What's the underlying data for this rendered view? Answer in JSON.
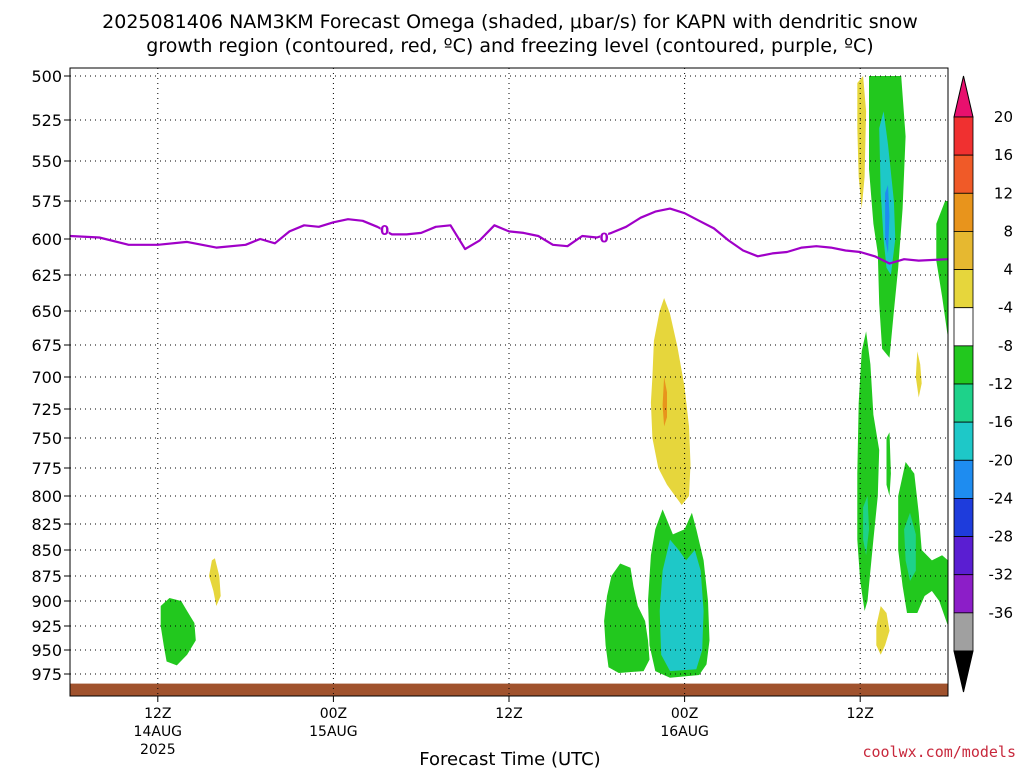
{
  "chart_data": {
    "type": "heatmap",
    "title_line1": "2025081406 NAM3KM Forecast Omega (shaded, μbar/s) for KAPN with dendritic snow",
    "title_line2": "growth region (contoured, red, ºC) and freezing level (contoured, purple, ºC)",
    "xlabel": "Forecast Time (UTC)",
    "credit": "coolwx.com/models",
    "y_axis": {
      "scale": "pressure (hPa), inverted",
      "ylim": [
        500,
        985
      ],
      "ticks": [
        "500",
        "525",
        "550",
        "575",
        "600",
        "625",
        "650",
        "675",
        "700",
        "725",
        "750",
        "775",
        "800",
        "825",
        "850",
        "875",
        "900",
        "925",
        "950",
        "975"
      ]
    },
    "x_axis": {
      "range_hours": [
        0,
        60
      ],
      "ticks": [
        {
          "label": "12Z",
          "sub": "14AUG",
          "sub2": "2025",
          "hour": 6
        },
        {
          "label": "00Z",
          "sub": "15AUG",
          "sub2": "",
          "hour": 18
        },
        {
          "label": "12Z",
          "sub": "",
          "sub2": "",
          "hour": 30
        },
        {
          "label": "00Z",
          "sub": "16AUG",
          "sub2": "",
          "hour": 42
        },
        {
          "label": "12Z",
          "sub": "",
          "sub2": "",
          "hour": 54
        }
      ]
    },
    "colorbar": {
      "labels": [
        "20",
        "16",
        "12",
        "8",
        "4",
        "-4",
        "-8",
        "-12",
        "-16",
        "-20",
        "-24",
        "-28",
        "-32",
        "-36"
      ],
      "colors": [
        "#e8106e",
        "#f03030",
        "#f05a28",
        "#e8941c",
        "#e6b830",
        "#e6d63c",
        "#ffffff",
        "#22c81e",
        "#1ed28a",
        "#1ec8c8",
        "#1e8cf0",
        "#1e3cdc",
        "#5a1ed2",
        "#8c1ec8",
        "#a0a0a0",
        "#000000"
      ],
      "grid": "dotted"
    },
    "freezing_level": {
      "color": "#a000c8",
      "label": "0",
      "points": [
        [
          0,
          598
        ],
        [
          2,
          599
        ],
        [
          4,
          604
        ],
        [
          6,
          604
        ],
        [
          8,
          602
        ],
        [
          10,
          606
        ],
        [
          12,
          604
        ],
        [
          13,
          600
        ],
        [
          14,
          603
        ],
        [
          15,
          595
        ],
        [
          16,
          591
        ],
        [
          17,
          592
        ],
        [
          18,
          589
        ],
        [
          19,
          587
        ],
        [
          20,
          588
        ],
        [
          21,
          592
        ],
        [
          22,
          597
        ],
        [
          23,
          597
        ],
        [
          24,
          596
        ],
        [
          25,
          592
        ],
        [
          26,
          591
        ],
        [
          27,
          607
        ],
        [
          28,
          601
        ],
        [
          29,
          591
        ],
        [
          30,
          595
        ],
        [
          31,
          596
        ],
        [
          32,
          598
        ],
        [
          33,
          604
        ],
        [
          34,
          605
        ],
        [
          35,
          598
        ],
        [
          36,
          599
        ],
        [
          37,
          596
        ],
        [
          38,
          592
        ],
        [
          39,
          586
        ],
        [
          40,
          582
        ],
        [
          41,
          580
        ],
        [
          42,
          583
        ],
        [
          43,
          588
        ],
        [
          44,
          593
        ],
        [
          45,
          601
        ],
        [
          46,
          608
        ],
        [
          47,
          612
        ],
        [
          48,
          610
        ],
        [
          49,
          609
        ],
        [
          50,
          606
        ],
        [
          51,
          605
        ],
        [
          52,
          606
        ],
        [
          53,
          608
        ],
        [
          54,
          609
        ],
        [
          55,
          612
        ],
        [
          56,
          617
        ],
        [
          57,
          614
        ],
        [
          58,
          615
        ],
        [
          60,
          614
        ]
      ],
      "label_points": [
        [
          21.5,
          594
        ],
        [
          36.5,
          599
        ]
      ]
    },
    "omega_regions": [
      {
        "name": "ascent-a-outer",
        "level": "-4",
        "color": "#22c81e",
        "points": [
          [
            6.2,
            905
          ],
          [
            6.8,
            897
          ],
          [
            7.6,
            900
          ],
          [
            8.0,
            910
          ],
          [
            8.5,
            922
          ],
          [
            8.6,
            940
          ],
          [
            8.0,
            955
          ],
          [
            7.3,
            966
          ],
          [
            6.6,
            962
          ],
          [
            6.4,
            945
          ],
          [
            6.2,
            925
          ]
        ]
      },
      {
        "name": "descent-a",
        "level": "4",
        "color": "#e6d63c",
        "points": [
          [
            9.5,
            875
          ],
          [
            9.7,
            860
          ],
          [
            9.9,
            858
          ],
          [
            10.2,
            875
          ],
          [
            10.3,
            895
          ],
          [
            10.0,
            905
          ],
          [
            9.8,
            890
          ]
        ]
      },
      {
        "name": "ascent-b-outer",
        "level": "-4",
        "color": "#22c81e",
        "points": [
          [
            36.7,
            895
          ],
          [
            37.0,
            875
          ],
          [
            37.6,
            863
          ],
          [
            38.3,
            867
          ],
          [
            38.5,
            885
          ],
          [
            38.8,
            905
          ],
          [
            39.3,
            920
          ],
          [
            39.5,
            940
          ],
          [
            39.6,
            960
          ],
          [
            39.2,
            972
          ],
          [
            37.5,
            974
          ],
          [
            36.8,
            968
          ],
          [
            36.6,
            945
          ],
          [
            36.5,
            920
          ]
        ]
      },
      {
        "name": "ascent-c-outer",
        "level": "-4",
        "color": "#22c81e",
        "points": [
          [
            39.7,
            855
          ],
          [
            40.0,
            830
          ],
          [
            40.5,
            812
          ],
          [
            41.2,
            835
          ],
          [
            42.0,
            830
          ],
          [
            42.5,
            815
          ],
          [
            42.8,
            830
          ],
          [
            43.3,
            860
          ],
          [
            43.6,
            900
          ],
          [
            43.7,
            940
          ],
          [
            43.5,
            965
          ],
          [
            43.0,
            976
          ],
          [
            41.0,
            979
          ],
          [
            40.0,
            972
          ],
          [
            39.6,
            945
          ],
          [
            39.5,
            900
          ]
        ]
      },
      {
        "name": "ascent-c-inner",
        "level": "-12",
        "color": "#1ec8c8",
        "points": [
          [
            40.5,
            870
          ],
          [
            41.0,
            840
          ],
          [
            41.6,
            850
          ],
          [
            42.1,
            860
          ],
          [
            42.7,
            850
          ],
          [
            43.1,
            870
          ],
          [
            43.3,
            910
          ],
          [
            43.2,
            950
          ],
          [
            42.8,
            970
          ],
          [
            41.0,
            972
          ],
          [
            40.4,
            955
          ],
          [
            40.3,
            910
          ]
        ]
      },
      {
        "name": "descent-b",
        "level": "4",
        "color": "#e6d63c",
        "points": [
          [
            39.8,
            700
          ],
          [
            39.9,
            672
          ],
          [
            40.3,
            650
          ],
          [
            40.6,
            641
          ],
          [
            41.0,
            652
          ],
          [
            41.5,
            676
          ],
          [
            42.0,
            708
          ],
          [
            42.3,
            740
          ],
          [
            42.4,
            772
          ],
          [
            42.3,
            800
          ],
          [
            41.8,
            808
          ],
          [
            40.8,
            790
          ],
          [
            40.2,
            775
          ],
          [
            39.8,
            750
          ],
          [
            39.7,
            720
          ]
        ]
      },
      {
        "name": "descent-b-core",
        "level": "8",
        "color": "#e8941c",
        "points": [
          [
            40.6,
            700
          ],
          [
            40.8,
            712
          ],
          [
            40.8,
            732
          ],
          [
            40.6,
            740
          ],
          [
            40.5,
            722
          ]
        ]
      },
      {
        "name": "descent-c",
        "level": "4",
        "color": "#e6d63c",
        "points": [
          [
            53.8,
            504
          ],
          [
            54.2,
            500
          ],
          [
            54.4,
            520
          ],
          [
            54.3,
            560
          ],
          [
            54.1,
            580
          ],
          [
            53.9,
            560
          ],
          [
            53.8,
            530
          ]
        ]
      },
      {
        "name": "ascent-d-outer",
        "level": "-4",
        "color": "#22c81e",
        "points": [
          [
            54.6,
            500
          ],
          [
            56.8,
            500
          ],
          [
            57.1,
            535
          ],
          [
            56.9,
            580
          ],
          [
            56.6,
            620
          ],
          [
            56.3,
            650
          ],
          [
            56.0,
            685
          ],
          [
            55.5,
            678
          ],
          [
            55.3,
            645
          ],
          [
            55.2,
            610
          ],
          [
            54.9,
            590
          ],
          [
            54.6,
            555
          ]
        ]
      },
      {
        "name": "ascent-d-inner",
        "level": "-12",
        "color": "#1ec8c8",
        "points": [
          [
            55.3,
            530
          ],
          [
            55.6,
            520
          ],
          [
            55.9,
            540
          ],
          [
            56.3,
            575
          ],
          [
            56.4,
            600
          ],
          [
            56.1,
            625
          ],
          [
            55.8,
            620
          ],
          [
            55.6,
            600
          ],
          [
            55.4,
            570
          ]
        ]
      },
      {
        "name": "ascent-d-core",
        "level": "-16",
        "color": "#1e8cf0",
        "points": [
          [
            55.7,
            570
          ],
          [
            55.9,
            565
          ],
          [
            56.0,
            585
          ],
          [
            55.9,
            610
          ],
          [
            55.7,
            600
          ]
        ]
      },
      {
        "name": "ascent-e-outer",
        "level": "-4",
        "color": "#22c81e",
        "points": [
          [
            59.2,
            590
          ],
          [
            59.8,
            575
          ],
          [
            60.0,
            575
          ],
          [
            60.0,
            670
          ],
          [
            59.6,
            640
          ],
          [
            59.2,
            615
          ]
        ]
      },
      {
        "name": "ascent-f-outer",
        "level": "-4",
        "color": "#22c81e",
        "points": [
          [
            53.8,
            780
          ],
          [
            53.9,
            720
          ],
          [
            54.1,
            680
          ],
          [
            54.4,
            665
          ],
          [
            54.7,
            690
          ],
          [
            54.9,
            730
          ],
          [
            55.3,
            760
          ],
          [
            55.2,
            800
          ],
          [
            54.9,
            840
          ],
          [
            54.7,
            870
          ],
          [
            54.5,
            900
          ],
          [
            54.3,
            910
          ],
          [
            54.0,
            880
          ],
          [
            53.8,
            840
          ]
        ]
      },
      {
        "name": "ascent-f-inner",
        "level": "-8",
        "color": "#1ed28a",
        "points": [
          [
            54.2,
            810
          ],
          [
            54.5,
            800
          ],
          [
            54.6,
            830
          ],
          [
            54.4,
            855
          ],
          [
            54.2,
            840
          ]
        ]
      },
      {
        "name": "ascent-g-outer",
        "level": "-4",
        "color": "#22c81e",
        "points": [
          [
            56.6,
            800
          ],
          [
            57.1,
            770
          ],
          [
            57.7,
            780
          ],
          [
            58.0,
            815
          ],
          [
            58.2,
            850
          ],
          [
            58.9,
            860
          ],
          [
            59.6,
            855
          ],
          [
            60.0,
            860
          ],
          [
            60.0,
            925
          ],
          [
            59.4,
            900
          ],
          [
            58.9,
            890
          ],
          [
            58.4,
            895
          ],
          [
            57.9,
            912
          ],
          [
            57.2,
            912
          ],
          [
            56.9,
            885
          ],
          [
            56.6,
            850
          ]
        ]
      },
      {
        "name": "ascent-g-inner",
        "level": "-8",
        "color": "#1ed28a",
        "points": [
          [
            57.0,
            830
          ],
          [
            57.4,
            815
          ],
          [
            57.8,
            835
          ],
          [
            57.8,
            870
          ],
          [
            57.4,
            880
          ],
          [
            57.1,
            860
          ]
        ]
      },
      {
        "name": "ascent-h-sliver",
        "level": "-4",
        "color": "#22c81e",
        "points": [
          [
            55.8,
            750
          ],
          [
            56.0,
            745
          ],
          [
            56.1,
            780
          ],
          [
            56.0,
            800
          ],
          [
            55.8,
            790
          ]
        ]
      },
      {
        "name": "descent-d",
        "level": "4",
        "color": "#e6d63c",
        "points": [
          [
            57.8,
            700
          ],
          [
            57.9,
            680
          ],
          [
            58.1,
            690
          ],
          [
            58.2,
            705
          ],
          [
            58.0,
            716
          ]
        ]
      },
      {
        "name": "descent-e",
        "level": "4",
        "color": "#e6d63c",
        "points": [
          [
            55.1,
            925
          ],
          [
            55.4,
            905
          ],
          [
            55.8,
            912
          ],
          [
            56.0,
            930
          ],
          [
            55.7,
            945
          ],
          [
            55.4,
            955
          ],
          [
            55.1,
            945
          ]
        ]
      }
    ],
    "terrain": {
      "color": "#a0522d",
      "surface_hPa": 985
    }
  }
}
